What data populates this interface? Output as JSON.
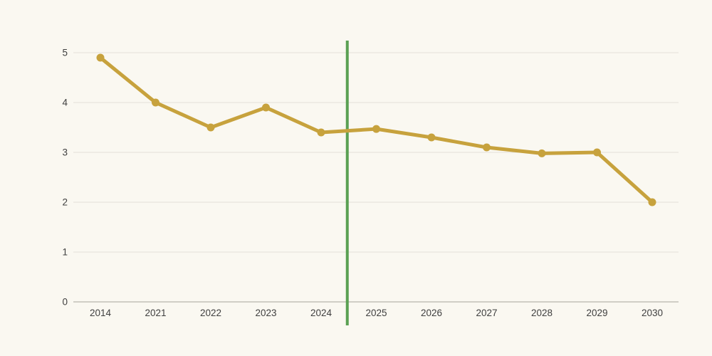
{
  "chart_data": {
    "type": "line",
    "categories": [
      "2014",
      "2021",
      "2022",
      "2023",
      "2024",
      "2025",
      "2026",
      "2027",
      "2028",
      "2029",
      "2030"
    ],
    "values": [
      4.9,
      4.0,
      3.5,
      3.9,
      3.4,
      3.47,
      3.3,
      3.1,
      2.98,
      3.0,
      2.0
    ],
    "title": "",
    "xlabel": "",
    "ylabel": "",
    "ylim": [
      0,
      5
    ],
    "yticks": [
      0,
      1,
      2,
      3,
      4,
      5
    ],
    "grid": true,
    "legend": false,
    "annotations": [
      {
        "type": "vline",
        "after_category": "2024",
        "before_category": "2025",
        "color": "#5aa053"
      }
    ],
    "colors": {
      "background": "#faf8f1",
      "line": "#c7a23d",
      "marker": "#c7a23d",
      "gridline": "#e4e1d9",
      "axis_line": "#a7a39b",
      "tick_text": "#3f3f3f",
      "divider": "#5aa053"
    }
  }
}
